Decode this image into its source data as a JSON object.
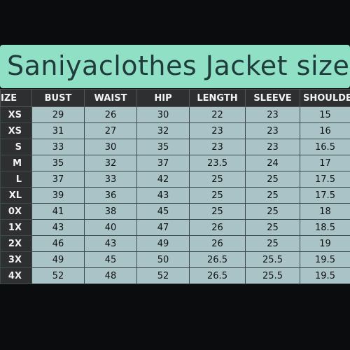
{
  "title": "Saniyaclothes Jacket size",
  "table": {
    "header": [
      "IZE",
      "BUST",
      "WAIST",
      "HIP",
      "LENGTH",
      "SLEEVE",
      "SHOULDE"
    ],
    "rows": [
      [
        "XS",
        "29",
        "26",
        "30",
        "22",
        "23",
        "15"
      ],
      [
        "XS",
        "31",
        "27",
        "32",
        "23",
        "23",
        "16"
      ],
      [
        "S",
        "33",
        "30",
        "35",
        "23",
        "23",
        "16.5"
      ],
      [
        "M",
        "35",
        "32",
        "37",
        "23.5",
        "24",
        "17"
      ],
      [
        "L",
        "37",
        "33",
        "42",
        "25",
        "25",
        "17.5"
      ],
      [
        "XL",
        "39",
        "36",
        "43",
        "25",
        "25",
        "17.5"
      ],
      [
        "0X",
        "41",
        "38",
        "45",
        "25",
        "25",
        "18"
      ],
      [
        "1X",
        "43",
        "40",
        "47",
        "26",
        "25",
        "18.5"
      ],
      [
        "2X",
        "46",
        "43",
        "49",
        "26",
        "25",
        "19"
      ],
      [
        "3X",
        "49",
        "45",
        "50",
        "26.5",
        "25.5",
        "19.5"
      ],
      [
        "4X",
        "52",
        "48",
        "52",
        "26.5",
        "25.5",
        "19.5"
      ]
    ]
  }
}
